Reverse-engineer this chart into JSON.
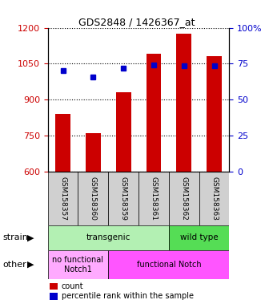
{
  "title": "GDS2848 / 1426367_at",
  "samples": [
    "GSM158357",
    "GSM158360",
    "GSM158359",
    "GSM158361",
    "GSM158362",
    "GSM158363"
  ],
  "bar_values": [
    840,
    760,
    930,
    1090,
    1175,
    1080
  ],
  "dot_values": [
    1020,
    995,
    1030,
    1045,
    1040,
    1042
  ],
  "ylim_left": [
    600,
    1200
  ],
  "ylim_right": [
    0,
    100
  ],
  "yticks_left": [
    600,
    750,
    900,
    1050,
    1200
  ],
  "yticks_right": [
    0,
    25,
    50,
    75,
    100
  ],
  "bar_color": "#cc0000",
  "dot_color": "#0000cc",
  "bar_width": 0.5,
  "strain_groups": [
    {
      "label": "transgenic",
      "span": [
        0,
        4
      ],
      "color": "#b3f0b3"
    },
    {
      "label": "wild type",
      "span": [
        4,
        6
      ],
      "color": "#55dd55"
    }
  ],
  "other_groups": [
    {
      "label": "no functional\nNotch1",
      "span": [
        0,
        2
      ],
      "color": "#ffaaff"
    },
    {
      "label": "functional Notch",
      "span": [
        2,
        6
      ],
      "color": "#ff55ff"
    }
  ],
  "strain_row_label": "strain",
  "other_row_label": "other",
  "legend_count_label": "count",
  "legend_pct_label": "percentile rank within the sample",
  "grid_style": "dotted",
  "tick_color_left": "#cc0000",
  "tick_color_right": "#0000cc",
  "label_bg_color": "#d0d0d0",
  "background_color": "#ffffff"
}
